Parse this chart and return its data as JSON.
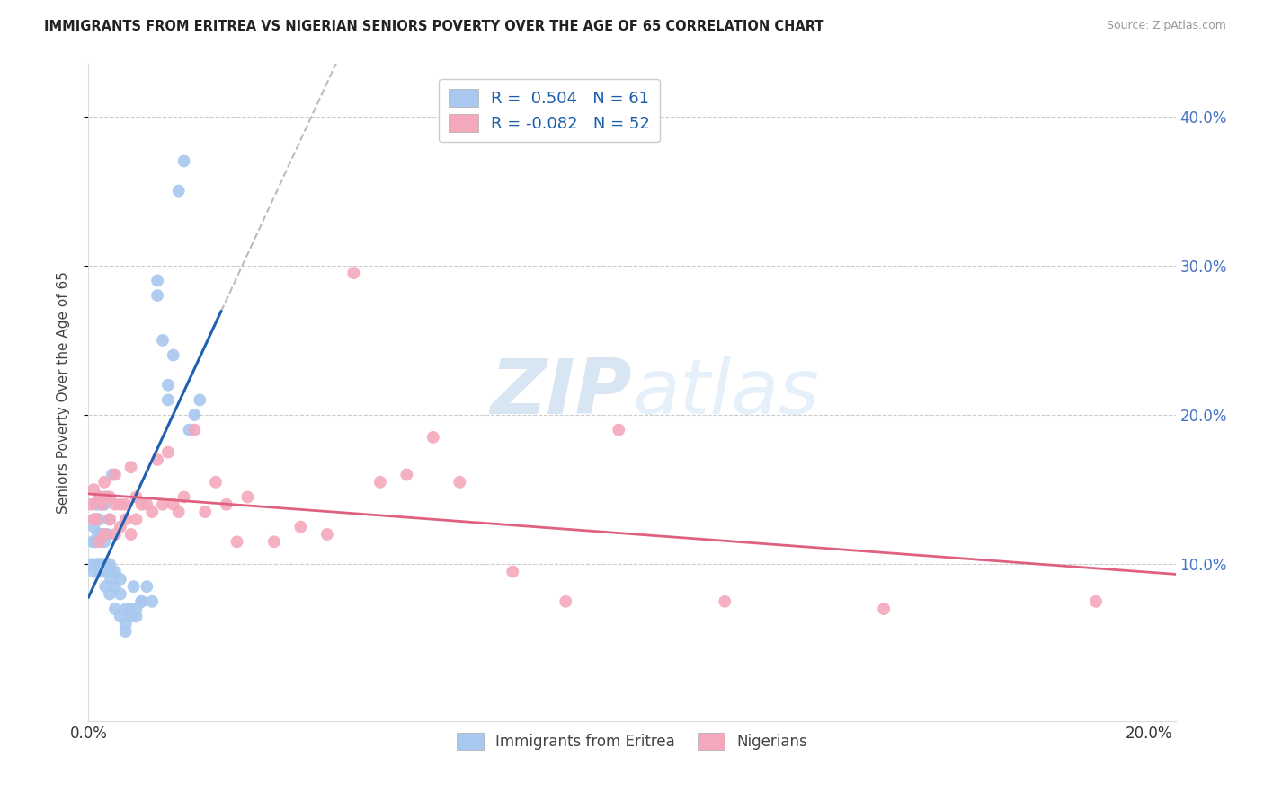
{
  "title": "IMMIGRANTS FROM ERITREA VS NIGERIAN SENIORS POVERTY OVER THE AGE OF 65 CORRELATION CHART",
  "source": "Source: ZipAtlas.com",
  "ylabel": "Seniors Poverty Over the Age of 65",
  "xlim": [
    0.0,
    0.205
  ],
  "ylim": [
    -0.005,
    0.435
  ],
  "xtick_labels": [
    "0.0%",
    "",
    "",
    "",
    "20.0%"
  ],
  "xtick_vals": [
    0.0,
    0.05,
    0.1,
    0.15,
    0.2
  ],
  "ytick_labels": [
    "10.0%",
    "20.0%",
    "30.0%",
    "40.0%"
  ],
  "ytick_vals": [
    0.1,
    0.2,
    0.3,
    0.4
  ],
  "color_eritrea": "#A8C8F0",
  "color_nigerian": "#F4A8BC",
  "trendline_eritrea_color": "#2060B0",
  "trendline_nigerian_color": "#E06080",
  "watermark_color": "#C8DFF5",
  "legend_eritrea_label": "R =  0.504   N = 61",
  "legend_nigerian_label": "R = -0.082   N = 52",
  "eritrea_x": [
    0.0005,
    0.0008,
    0.001,
    0.001,
    0.0012,
    0.0013,
    0.0015,
    0.0015,
    0.0017,
    0.0018,
    0.002,
    0.002,
    0.002,
    0.002,
    0.0022,
    0.0025,
    0.0025,
    0.0027,
    0.003,
    0.003,
    0.003,
    0.003,
    0.0032,
    0.0033,
    0.0035,
    0.0035,
    0.004,
    0.004,
    0.004,
    0.004,
    0.0042,
    0.0045,
    0.005,
    0.005,
    0.005,
    0.006,
    0.006,
    0.006,
    0.007,
    0.007,
    0.007,
    0.008,
    0.008,
    0.0085,
    0.009,
    0.009,
    0.01,
    0.01,
    0.011,
    0.012,
    0.013,
    0.013,
    0.014,
    0.015,
    0.015,
    0.016,
    0.017,
    0.018,
    0.019,
    0.02,
    0.021
  ],
  "eritrea_y": [
    0.1,
    0.115,
    0.095,
    0.125,
    0.13,
    0.115,
    0.13,
    0.14,
    0.1,
    0.12,
    0.095,
    0.1,
    0.13,
    0.145,
    0.12,
    0.12,
    0.14,
    0.1,
    0.095,
    0.1,
    0.115,
    0.14,
    0.085,
    0.1,
    0.12,
    0.145,
    0.08,
    0.095,
    0.1,
    0.13,
    0.09,
    0.16,
    0.07,
    0.085,
    0.095,
    0.065,
    0.08,
    0.09,
    0.055,
    0.06,
    0.07,
    0.065,
    0.07,
    0.085,
    0.065,
    0.07,
    0.075,
    0.075,
    0.085,
    0.075,
    0.28,
    0.29,
    0.25,
    0.21,
    0.22,
    0.24,
    0.35,
    0.37,
    0.19,
    0.2,
    0.21
  ],
  "nigerian_x": [
    0.0005,
    0.001,
    0.001,
    0.0015,
    0.002,
    0.002,
    0.0025,
    0.003,
    0.003,
    0.003,
    0.004,
    0.004,
    0.005,
    0.005,
    0.005,
    0.006,
    0.006,
    0.007,
    0.007,
    0.008,
    0.008,
    0.009,
    0.009,
    0.01,
    0.011,
    0.012,
    0.013,
    0.014,
    0.015,
    0.016,
    0.017,
    0.018,
    0.02,
    0.022,
    0.024,
    0.026,
    0.028,
    0.03,
    0.035,
    0.04,
    0.045,
    0.05,
    0.055,
    0.06,
    0.065,
    0.07,
    0.08,
    0.09,
    0.1,
    0.12,
    0.15,
    0.19
  ],
  "nigerian_y": [
    0.14,
    0.13,
    0.15,
    0.13,
    0.115,
    0.145,
    0.14,
    0.12,
    0.145,
    0.155,
    0.13,
    0.145,
    0.12,
    0.14,
    0.16,
    0.125,
    0.14,
    0.13,
    0.14,
    0.12,
    0.165,
    0.13,
    0.145,
    0.14,
    0.14,
    0.135,
    0.17,
    0.14,
    0.175,
    0.14,
    0.135,
    0.145,
    0.19,
    0.135,
    0.155,
    0.14,
    0.115,
    0.145,
    0.115,
    0.125,
    0.12,
    0.295,
    0.155,
    0.16,
    0.185,
    0.155,
    0.095,
    0.075,
    0.19,
    0.075,
    0.07,
    0.075
  ]
}
